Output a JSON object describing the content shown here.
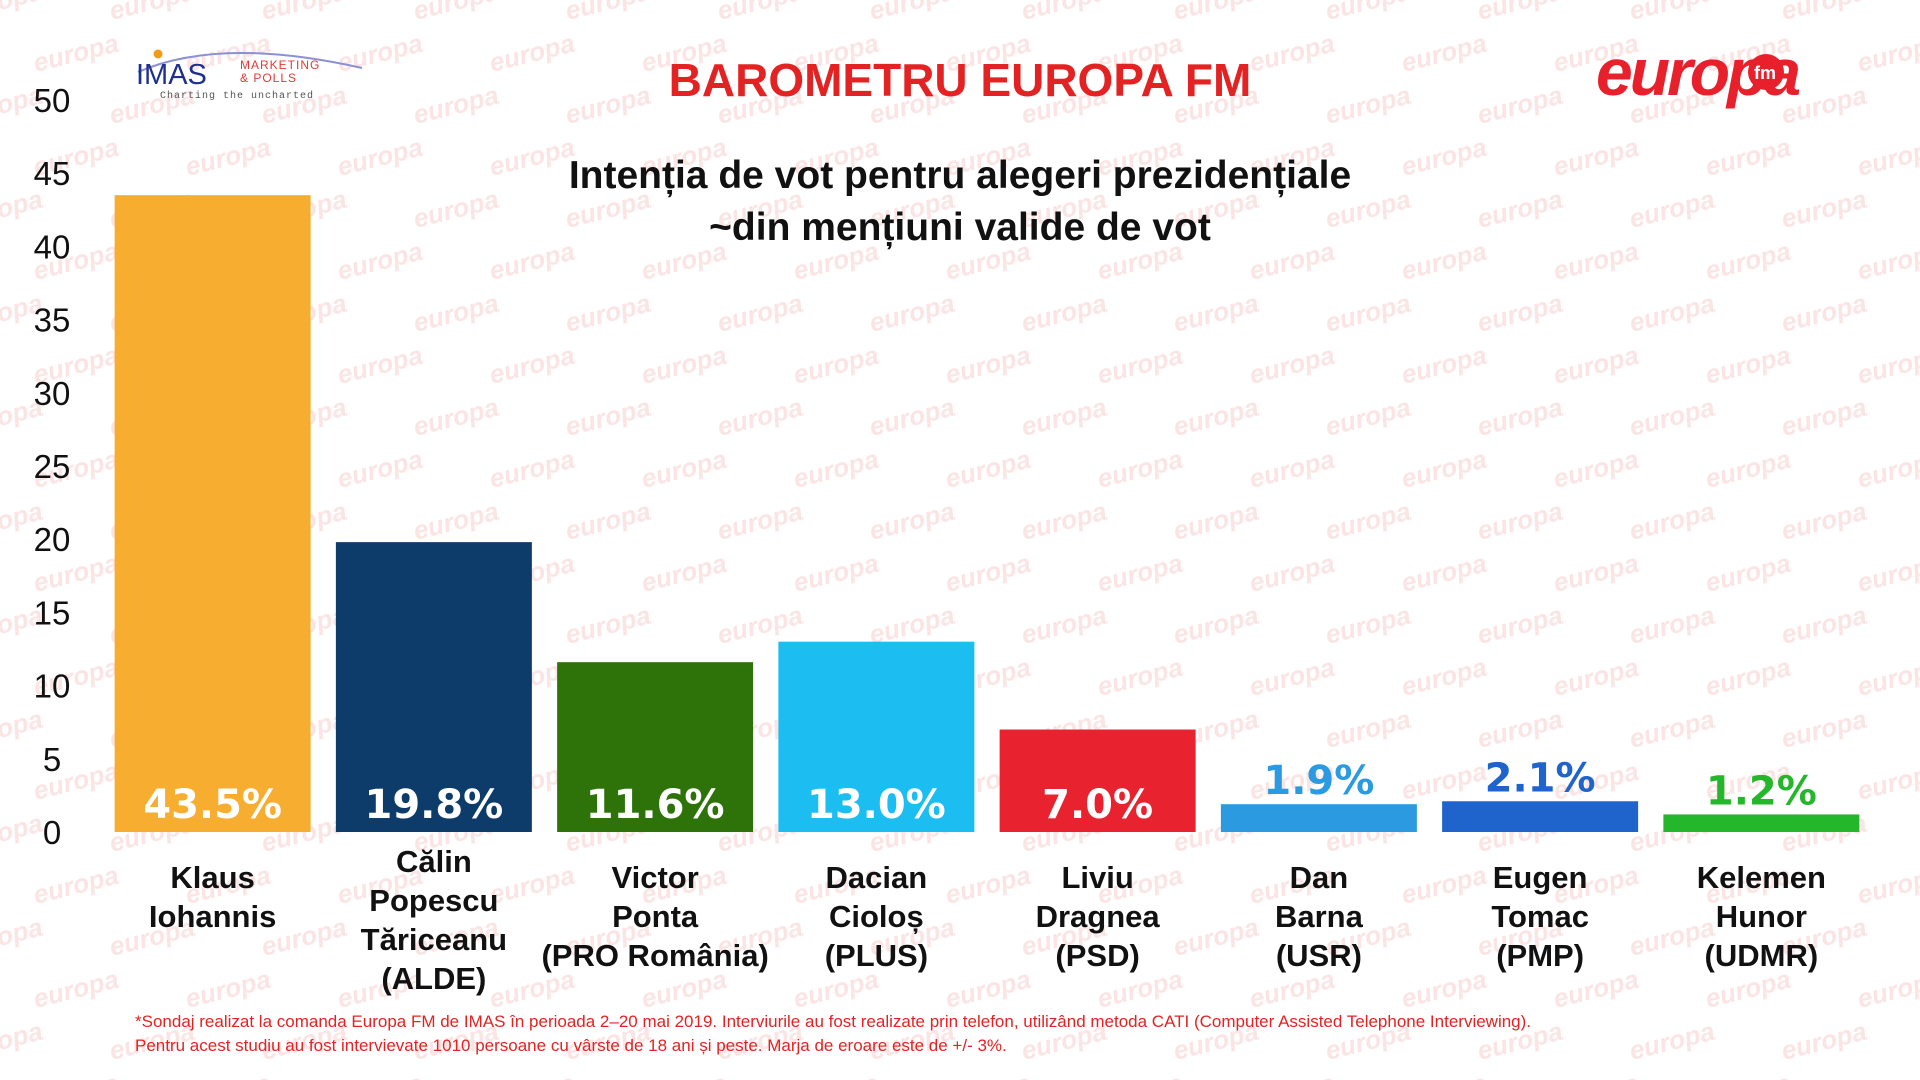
{
  "header": {
    "main_title": "BAROMETRU EUROPA FM",
    "subtitle_line1": "Intenția de vot pentru alegeri prezidențiale",
    "subtitle_line2": "~din mențiuni valide de vot"
  },
  "logos": {
    "imas_name": "IMAS",
    "imas_sub1": "MARKETING",
    "imas_sub2": "& POLLS",
    "imas_tagline": "Charting the uncharted",
    "brand_name": "europa",
    "brand_suffix": "fm",
    "watermark_text": "europa"
  },
  "chart_data": {
    "type": "bar",
    "title": "Intenția de vot pentru alegeri prezidențiale ~din mențiuni valide de vot",
    "ylim": [
      0,
      50
    ],
    "yticks": [
      "0",
      "5",
      "10",
      "15",
      "20",
      "25",
      "30",
      "35",
      "40",
      "45",
      "50"
    ],
    "bars": [
      {
        "category": [
          "Klaus",
          "Iohannis"
        ],
        "value": 43.5,
        "label": "43.5%",
        "color": "#f7ad30",
        "label_color": "#ffffff",
        "label_inside": true
      },
      {
        "category": [
          "Călin",
          "Popescu",
          "Tăriceanu",
          "(ALDE)"
        ],
        "value": 19.8,
        "label": "19.8%",
        "color": "#0d3c6a",
        "label_color": "#ffffff",
        "label_inside": true
      },
      {
        "category": [
          "Victor",
          "Ponta",
          "(PRO România)"
        ],
        "value": 11.6,
        "label": "11.6%",
        "color": "#2e7309",
        "label_color": "#ffffff",
        "label_inside": true
      },
      {
        "category": [
          "Dacian",
          "Cioloș",
          "(PLUS)"
        ],
        "value": 13.0,
        "label": "13.0%",
        "color": "#1cbdf0",
        "label_color": "#ffffff",
        "label_inside": true
      },
      {
        "category": [
          "Liviu",
          "Dragnea",
          "(PSD)"
        ],
        "value": 7.0,
        "label": "7.0%",
        "color": "#e8232f",
        "label_color": "#ffffff",
        "label_inside": true
      },
      {
        "category": [
          "Dan",
          "Barna",
          "(USR)"
        ],
        "value": 1.9,
        "label": "1.9%",
        "color": "#2b9ae0",
        "label_color": "#2b9ae0",
        "label_inside": false
      },
      {
        "category": [
          "Eugen",
          "Tomac",
          "(PMP)"
        ],
        "value": 2.1,
        "label": "2.1%",
        "color": "#1e64cc",
        "label_color": "#1e64cc",
        "label_inside": false
      },
      {
        "category": [
          "Kelemen",
          "Hunor",
          "(UDMR)"
        ],
        "value": 1.2,
        "label": "1.2%",
        "color": "#25b72b",
        "label_color": "#25b72b",
        "label_inside": false
      }
    ]
  },
  "footnote": {
    "line1": "*Sondaj realizat la comanda Europa FM de IMAS în perioada 2–20 mai 2019. Interviurile au fost realizate prin telefon, utilizând metoda CATI (Computer Assisted Telephone Interviewing).",
    "line2": "Pentru acest studiu au fost intervievate 1010 persoane cu vârste de 18 ani și peste. Marja de eroare este de +/- 3%."
  },
  "colors": {
    "title_red": "#e32323",
    "axis_text": "#111111",
    "watermark": "#fbe4e4"
  }
}
